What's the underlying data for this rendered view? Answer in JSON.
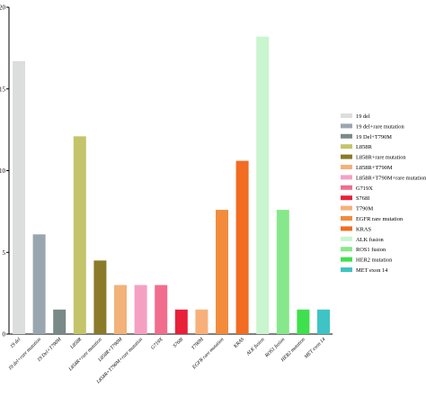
{
  "chart_data": {
    "type": "bar",
    "ylim": [
      0,
      20
    ],
    "yticks": [
      "0",
      "5",
      "10",
      "15",
      "20"
    ],
    "grid": false,
    "legend_position": "right",
    "categories": [
      "19 del",
      "19 del+rare mutation",
      "19 Del+T790M",
      "L858R",
      "L858R+rare mutation",
      "L858R+T790M",
      "L858R+T790M+rare mutation",
      "G719X",
      "S768I",
      "T790M",
      "EGFR rare mutation",
      "KRAS",
      "ALK fusion",
      "ROS1 fusion",
      "HER2 mutation",
      "MET exon 14"
    ],
    "values": [
      16.7,
      6.1,
      1.5,
      12.1,
      4.5,
      3.0,
      3.0,
      3.0,
      1.5,
      1.5,
      7.6,
      10.6,
      18.2,
      7.6,
      1.5,
      1.5
    ],
    "colors": [
      "#dcdedd",
      "#9aa6af",
      "#7a8a88",
      "#c4c46a",
      "#8a7a2a",
      "#f2b27a",
      "#f5a0c3",
      "#f26d8d",
      "#e8203a",
      "#f7b07a",
      "#f28c3c",
      "#f26c22",
      "#c9f5cf",
      "#86e88a",
      "#3ee04e",
      "#3ec4c4"
    ],
    "legend": [
      "19 del",
      "19 del+rare mutation",
      "19 Del+T790M",
      "L858R",
      "L858R+rare mutation",
      "L858R+T790M",
      "L858R+T790M+rare mutation",
      "G719X",
      "S768I",
      "T790M",
      "EGFR rare mutation",
      "KRAS",
      "ALK fusion",
      "ROS1 fusion",
      "HER2 mutation",
      "MET exon 14"
    ]
  }
}
